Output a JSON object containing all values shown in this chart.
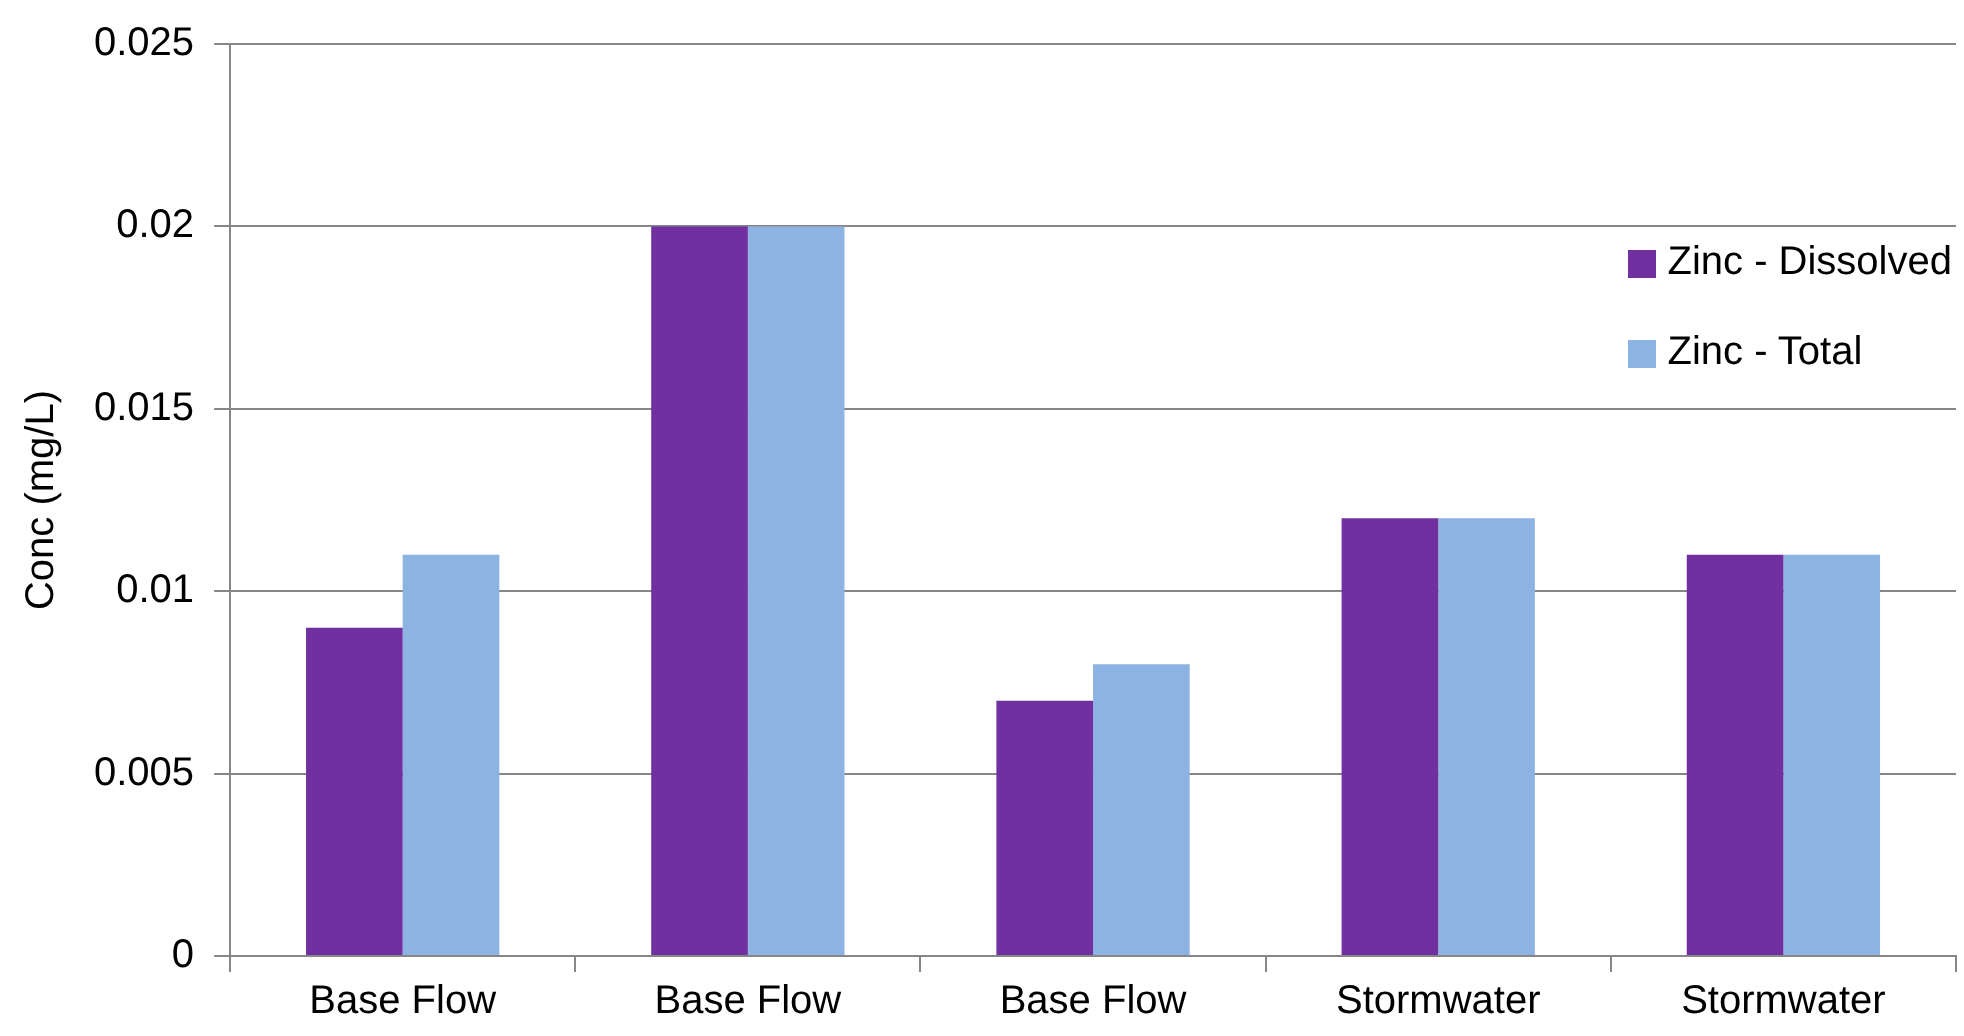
{
  "chart_data": {
    "type": "bar",
    "ylabel": "Conc (mg/L)",
    "categories": [
      "Base Flow",
      "Base Flow",
      "Base Flow",
      "Stormwater",
      "Stormwater"
    ],
    "series": [
      {
        "name": "Zinc  - Dissolved",
        "color": "#7030a0",
        "values": [
          0.009,
          0.02,
          0.007,
          0.012,
          0.011
        ]
      },
      {
        "name": "Zinc - Total",
        "color": "#8db3e2",
        "values": [
          0.011,
          0.02,
          0.008,
          0.012,
          0.011
        ]
      }
    ],
    "ylim": [
      0,
      0.025
    ],
    "yticks": [
      0,
      0.005,
      0.01,
      0.015,
      0.02,
      0.025
    ],
    "grid": "y",
    "legend": "top right"
  }
}
